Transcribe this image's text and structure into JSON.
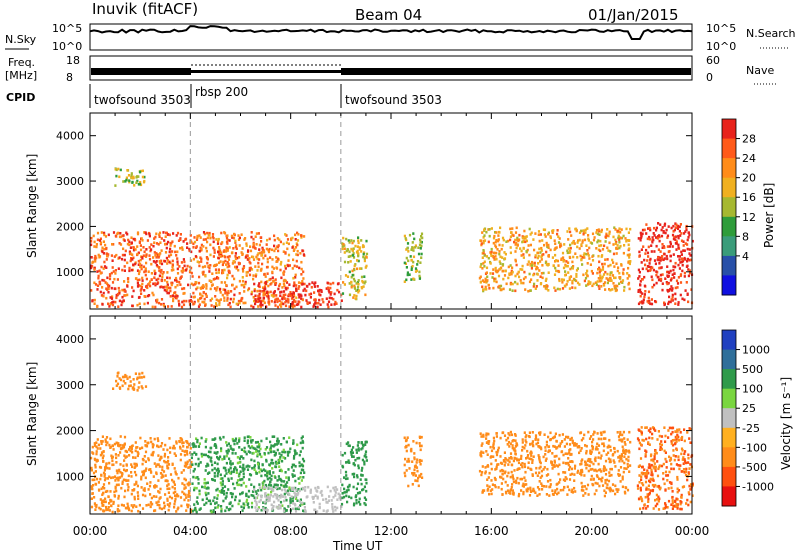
{
  "header": {
    "station": "Inuvik (fitACF)",
    "beam": "Beam 04",
    "date": "01/Jan/2015"
  },
  "top_panels": {
    "nsky": {
      "left_label": "N.Sky",
      "left_ticks": [
        "10^5",
        "10^0"
      ],
      "right_label": "N.Search",
      "right_ticks": [
        "10^5",
        "10^0"
      ]
    },
    "freq": {
      "left_label_1": "Freq.",
      "left_label_2": "[MHz]",
      "left_ticks": [
        "18",
        "8"
      ],
      "right_label": "Nave",
      "right_ticks": [
        "60",
        "0"
      ]
    },
    "cpid": {
      "label": "CPID",
      "segments": [
        {
          "name": "twofsound 3503",
          "start_h": 0,
          "end_h": 4
        },
        {
          "name": "rbsp 200",
          "start_h": 4,
          "end_h": 10
        },
        {
          "name": "twofsound 3503",
          "start_h": 10,
          "end_h": 24
        }
      ]
    }
  },
  "chart_data": [
    {
      "type": "heatmap",
      "panel": "power",
      "ylabel": "Slant Range [km]",
      "xlabel": "",
      "x_range_hours": [
        0,
        24
      ],
      "ylim": [
        180,
        4500
      ],
      "y_ticks": [
        1000,
        2000,
        3000,
        4000
      ],
      "colorbar": {
        "label": "Power [dB]",
        "ticks": [
          "28",
          "24",
          "20",
          "16",
          "12",
          "8",
          "4"
        ],
        "colors": [
          "#e8231c",
          "#ff5a1a",
          "#ff8c1a",
          "#f0b020",
          "#a6b830",
          "#2e9c3a",
          "#3a9c7a",
          "#2850a8",
          "#1010e0"
        ]
      },
      "regions": [
        {
          "t0": 0.0,
          "t1": 4.0,
          "r0": 250,
          "r1": 1900,
          "level": 24
        },
        {
          "t0": 0.8,
          "t1": 2.2,
          "r0": 2900,
          "r1": 3300,
          "level": 12
        },
        {
          "t0": 4.0,
          "t1": 8.5,
          "r0": 250,
          "r1": 1900,
          "level": 22
        },
        {
          "t0": 6.5,
          "t1": 10.0,
          "r0": 250,
          "r1": 800,
          "level": 28
        },
        {
          "t0": 10.0,
          "t1": 11.0,
          "r0": 400,
          "r1": 1800,
          "level": 14
        },
        {
          "t0": 12.5,
          "t1": 13.2,
          "r0": 800,
          "r1": 1900,
          "level": 12
        },
        {
          "t0": 15.5,
          "t1": 21.5,
          "r0": 600,
          "r1": 2000,
          "level": 18
        },
        {
          "t0": 21.8,
          "t1": 24.0,
          "r0": 300,
          "r1": 2100,
          "level": 28
        }
      ]
    },
    {
      "type": "heatmap",
      "panel": "velocity",
      "ylabel": "Slant Range [km]",
      "xlabel": "Time UT",
      "x_range_hours": [
        0,
        24
      ],
      "x_ticks": [
        "00:00",
        "04:00",
        "08:00",
        "12:00",
        "16:00",
        "20:00",
        "00:00"
      ],
      "ylim": [
        180,
        4500
      ],
      "y_ticks": [
        1000,
        2000,
        3000,
        4000
      ],
      "colorbar": {
        "label": "Velocity [m s⁻¹]",
        "ticks": [
          "1000",
          "500",
          "100",
          "25",
          "-25",
          "-100",
          "-500",
          "-1000"
        ],
        "colors": [
          "#2040c0",
          "#2f6f9a",
          "#2f9a4a",
          "#7ad640",
          "#c0c0c0",
          "#ffb020",
          "#ff8c1a",
          "#ff5010",
          "#e81010"
        ]
      },
      "regions": [
        {
          "t0": 0.0,
          "t1": 4.0,
          "r0": 250,
          "r1": 1900,
          "level": -300
        },
        {
          "t0": 0.8,
          "t1": 2.2,
          "r0": 2900,
          "r1": 3300,
          "level": -200
        },
        {
          "t0": 4.0,
          "t1": 8.5,
          "r0": 250,
          "r1": 1900,
          "level": 150
        },
        {
          "t0": 6.5,
          "t1": 10.0,
          "r0": 250,
          "r1": 800,
          "level": 0
        },
        {
          "t0": 10.0,
          "t1": 11.0,
          "r0": 400,
          "r1": 1800,
          "level": 200
        },
        {
          "t0": 12.5,
          "t1": 13.2,
          "r0": 800,
          "r1": 1900,
          "level": -300
        },
        {
          "t0": 15.5,
          "t1": 21.5,
          "r0": 600,
          "r1": 2000,
          "level": -300
        },
        {
          "t0": 21.8,
          "t1": 24.0,
          "r0": 300,
          "r1": 2100,
          "level": -500
        }
      ]
    }
  ]
}
